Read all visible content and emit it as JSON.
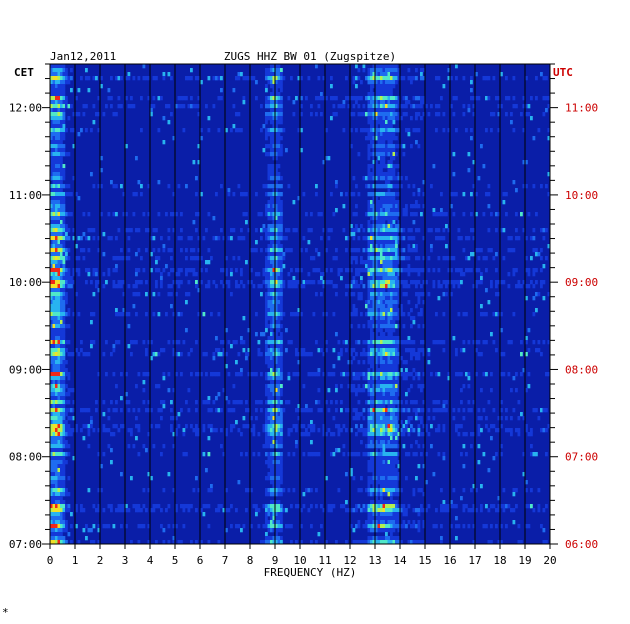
{
  "chart_data": {
    "type": "heatmap",
    "date": "Jan12,2011",
    "title": "ZUGS HHZ BW 01 (Zugspitze)",
    "xlabel": "FREQUENCY (HZ)",
    "left_axis_label": "CET",
    "right_axis_label": "UTC",
    "xlim": [
      0,
      20
    ],
    "x_ticks": [
      "0",
      "1",
      "2",
      "3",
      "4",
      "5",
      "6",
      "7",
      "8",
      "9",
      "10",
      "11",
      "12",
      "13",
      "14",
      "15",
      "16",
      "17",
      "18",
      "19",
      "20"
    ],
    "left_time_labels": [
      "12:00",
      "11:00",
      "10:00",
      "09:00",
      "08:00",
      "07:00"
    ],
    "right_time_labels": [
      "11:00",
      "10:00",
      "09:00",
      "08:00",
      "07:00",
      "06:00"
    ],
    "time_range_cet": [
      "07:00",
      "12:30"
    ],
    "colors": {
      "background": "#0a1ea8",
      "grid": "#000000",
      "utc_label": "#cc0000",
      "cet_label": "#000000"
    },
    "dominant_bands_hz": [
      0.3,
      9.0,
      13.0,
      13.6
    ],
    "footnote": "*"
  }
}
